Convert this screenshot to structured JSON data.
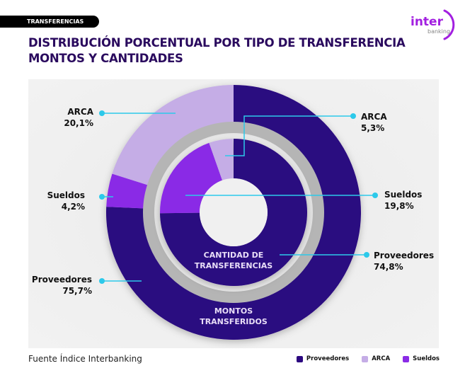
{
  "tag": "TRANSFERENCIAS",
  "title_line1": "DISTRIBUCIÓN PORCENTUAL POR TIPO DE TRANSFERENCIA",
  "title_line2": "MONTOS Y CANTIDADES",
  "logo": {
    "main": "inter",
    "sub": "banking"
  },
  "source": "Fuente Índice Interbanking",
  "colors": {
    "Proveedores": "#2c0780",
    "ARCA": "#c5ade6",
    "Sueldos": "#8a2be6",
    "leader": "#2cc9ea",
    "gray_ring": "#b5b5b5"
  },
  "chart_data": {
    "type": "pie",
    "variant": "nested-donut",
    "legend": [
      "Proveedores",
      "ARCA",
      "Sueldos"
    ],
    "legend_placement": "bottom-right",
    "rings": [
      {
        "name": "MONTOS TRANSFERIDOS",
        "position": "outer",
        "slices": [
          {
            "label": "Proveedores",
            "value": 75.7,
            "text": "75,7%"
          },
          {
            "label": "Sueldos",
            "value": 4.2,
            "text": "4,2%"
          },
          {
            "label": "ARCA",
            "value": 20.1,
            "text": "20,1%"
          }
        ]
      },
      {
        "name": "CANTIDAD DE TRANSFERENCIAS",
        "position": "inner",
        "slices": [
          {
            "label": "Proveedores",
            "value": 74.8,
            "text": "74,8%"
          },
          {
            "label": "Sueldos",
            "value": 19.8,
            "text": "19,8%"
          },
          {
            "label": "ARCA",
            "value": 5.3,
            "text": "5,3%"
          }
        ]
      }
    ]
  }
}
